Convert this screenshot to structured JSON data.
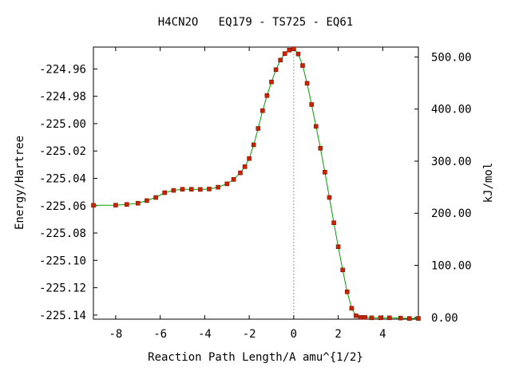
{
  "chart_data": {
    "type": "line",
    "title": "H4CN2O   EQ179 - TS725 - EQ61",
    "xlabel": "Reaction Path Length/A amu^{1/2}",
    "ylabel": "Energy/Hartree",
    "y2label": "kJ/mol",
    "xlim": [
      -9.0,
      5.6
    ],
    "ylim": [
      -225.143,
      -224.944
    ],
    "x_ticks": [
      -8,
      -6,
      -4,
      -2,
      0,
      2,
      4
    ],
    "x_tick_labels": [
      "-8",
      "-6",
      "-4",
      "-2",
      "0",
      "2",
      "4"
    ],
    "y_ticks": [
      -224.96,
      -224.98,
      -225.0,
      -225.02,
      -225.04,
      -225.06,
      -225.08,
      -225.1,
      -225.12,
      -225.14
    ],
    "y_tick_labels": [
      "-224.96",
      "-224.98",
      "-225.00",
      "-225.02",
      "-225.04",
      "-225.06",
      "-225.08",
      "-225.10",
      "-225.12",
      "-225.14"
    ],
    "y2_reference_hartree": -225.1417,
    "hartree_to_kjmol": 2625.5,
    "y2_ticks": [
      0,
      100,
      200,
      300,
      400,
      500
    ],
    "y2_tick_labels": [
      "0.00",
      "100.00",
      "200.00",
      "300.00",
      "400.00",
      "500.00"
    ],
    "ts_x": 0.0,
    "colors": {
      "line": "#00a000",
      "marker": "#cc2200",
      "marker_edge": "#7a1500",
      "ts_line": "#999999"
    },
    "series": [
      {
        "x": [
          -9.0,
          -8.0,
          -7.5,
          -7.0,
          -6.6,
          -6.2,
          -5.8,
          -5.4,
          -5.0,
          -4.6,
          -4.2,
          -3.8,
          -3.4,
          -3.0,
          -2.7,
          -2.4,
          -2.2,
          -2.0,
          -1.8,
          -1.6,
          -1.4,
          -1.2,
          -1.0,
          -0.8,
          -0.6,
          -0.4,
          -0.2,
          0.0,
          0.2,
          0.4,
          0.6,
          0.8,
          1.0,
          1.2,
          1.4,
          1.6,
          1.8,
          2.0,
          2.2,
          2.4,
          2.6,
          2.8,
          3.0,
          3.2,
          3.5,
          3.9,
          4.3,
          4.8,
          5.2,
          5.6
        ],
        "y": [
          -225.0597,
          -225.0596,
          -225.0591,
          -225.0582,
          -225.0563,
          -225.054,
          -225.0505,
          -225.0488,
          -225.048,
          -225.048,
          -225.0481,
          -225.0478,
          -225.0465,
          -225.044,
          -225.0408,
          -225.036,
          -225.0315,
          -225.0255,
          -225.0155,
          -225.0035,
          -224.9905,
          -224.9795,
          -224.9695,
          -224.9605,
          -224.9535,
          -224.9488,
          -224.9462,
          -224.9453,
          -224.949,
          -224.9575,
          -224.9705,
          -224.986,
          -225.002,
          -225.018,
          -225.0355,
          -225.054,
          -225.0725,
          -225.09,
          -225.107,
          -225.123,
          -225.135,
          -225.1405,
          -225.1417,
          -225.1417,
          -225.142,
          -225.142,
          -225.142,
          -225.1422,
          -225.1425,
          -225.1425
        ]
      }
    ]
  }
}
